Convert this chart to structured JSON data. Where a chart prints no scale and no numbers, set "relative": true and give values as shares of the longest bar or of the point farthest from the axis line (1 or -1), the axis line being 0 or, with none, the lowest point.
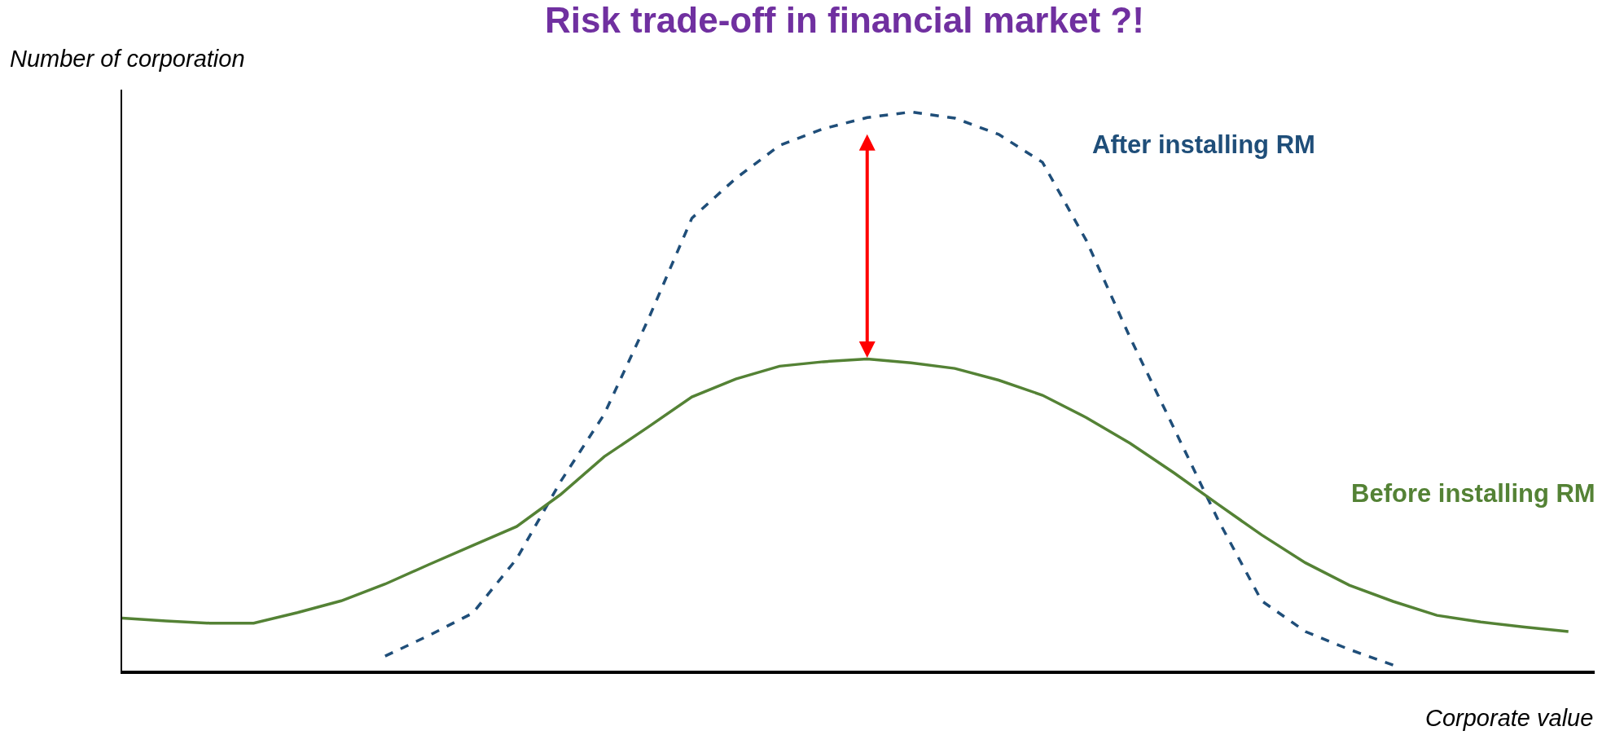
{
  "chart_data": {
    "type": "line",
    "title": "Risk trade-off in financial market ?!",
    "xlabel": "Corporate value",
    "ylabel": "Number of corporation",
    "relative": true,
    "legend": false,
    "marker": "none",
    "categories": [
      null,
      null,
      null,
      null,
      null,
      null,
      null,
      null,
      null,
      null,
      null,
      null,
      null,
      null,
      null,
      null,
      null,
      null,
      null,
      null,
      null,
      null,
      null,
      null,
      null,
      null,
      null,
      null,
      null,
      null,
      null,
      null,
      null,
      null
    ],
    "series": [
      {
        "name": "After installing RM",
        "color": "#1f4e79",
        "line_style": "dashed",
        "values": [
          null,
          null,
          null,
          null,
          null,
          null,
          0.026,
          0.063,
          0.103,
          0.2,
          0.338,
          0.459,
          0.628,
          0.81,
          0.881,
          0.94,
          0.97,
          0.99,
          1.0,
          0.989,
          0.96,
          0.91,
          0.77,
          0.596,
          0.434,
          0.271,
          0.125,
          0.07,
          0.038,
          0.01,
          null,
          null,
          null,
          null
        ]
      },
      {
        "name": "Before installing RM",
        "color": "#548235",
        "line_style": "solid",
        "values": [
          0.094,
          0.089,
          0.085,
          0.085,
          0.104,
          0.125,
          0.155,
          0.19,
          0.224,
          0.258,
          0.315,
          0.383,
          0.436,
          0.49,
          0.522,
          0.545,
          0.553,
          0.558,
          0.551,
          0.541,
          0.52,
          0.493,
          0.453,
          0.407,
          0.354,
          0.298,
          0.243,
          0.193,
          0.153,
          0.124,
          0.099,
          0.087,
          0.078,
          0.07
        ]
      }
    ]
  }
}
